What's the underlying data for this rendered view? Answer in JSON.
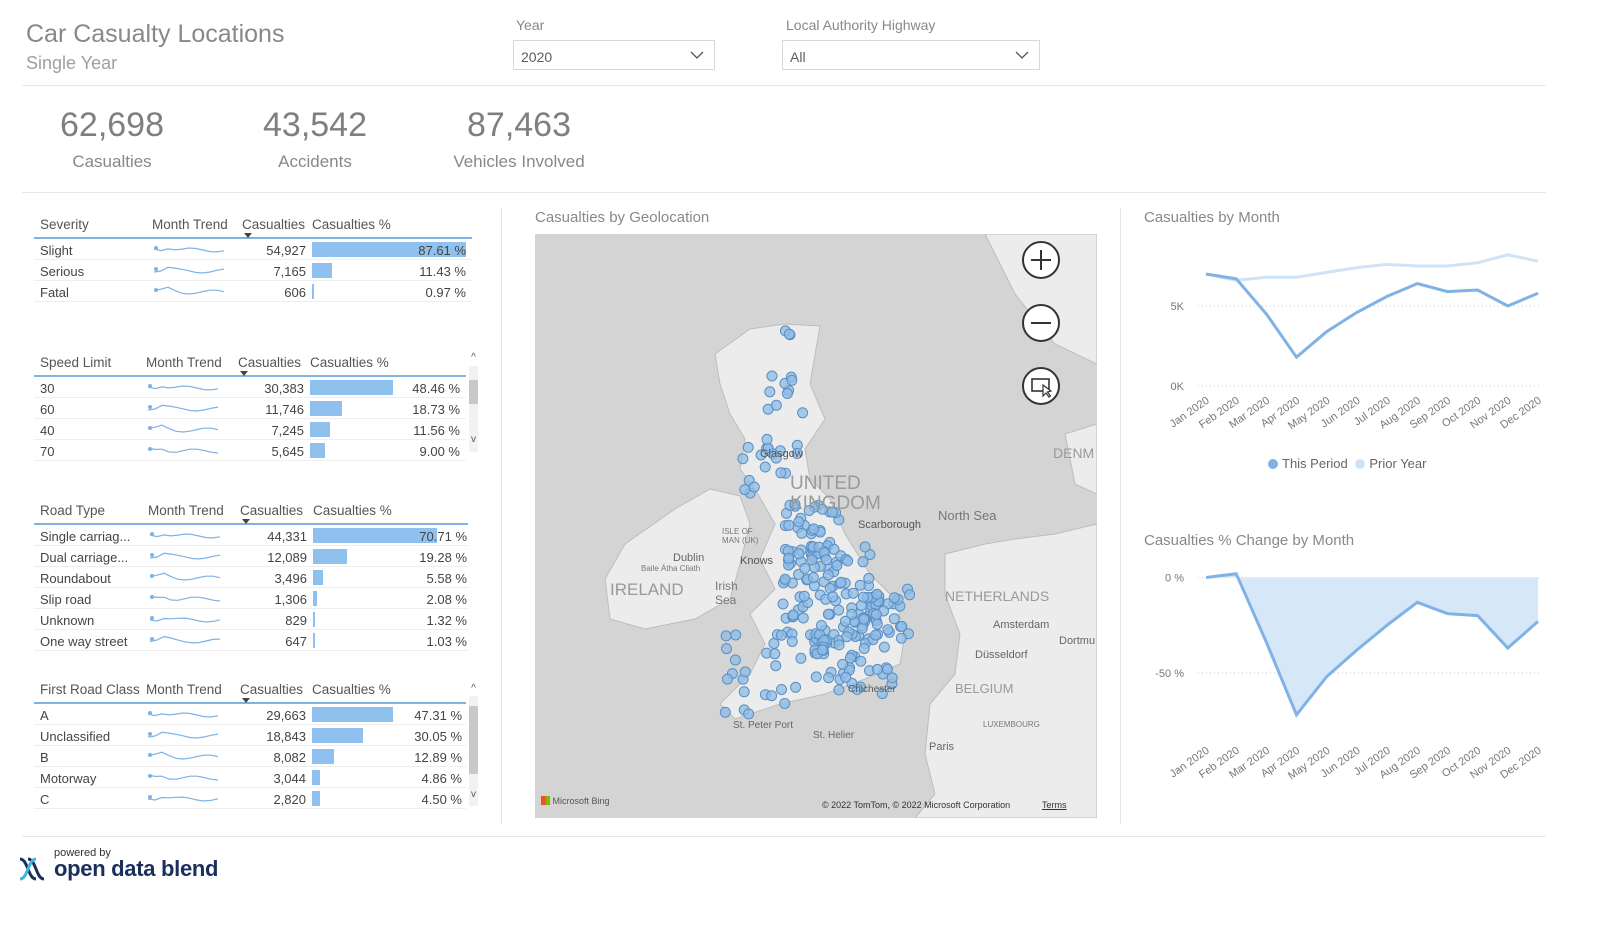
{
  "header": {
    "title": "Car Casualty Locations",
    "subtitle": "Single Year",
    "year_label": "Year",
    "year_value": "2020",
    "highway_label": "Local Authority Highway",
    "highway_value": "All"
  },
  "kpis": [
    {
      "value": "62,698",
      "label": "Casualties"
    },
    {
      "value": "43,542",
      "label": "Accidents"
    },
    {
      "value": "87,463",
      "label": "Vehicles Involved"
    }
  ],
  "tables": {
    "severity": {
      "headers": [
        "Severity",
        "Month Trend",
        "Casualties",
        "Casualties %"
      ],
      "rows": [
        {
          "name": "Slight",
          "casualties": "54,927",
          "pct": "87.61 %",
          "share": 87.61
        },
        {
          "name": "Serious",
          "casualties": "7,165",
          "pct": "11.43 %",
          "share": 11.43
        },
        {
          "name": "Fatal",
          "casualties": "606",
          "pct": "0.97 %",
          "share": 0.97
        }
      ]
    },
    "speed": {
      "headers": [
        "Speed Limit",
        "Month Trend",
        "Casualties",
        "Casualties %"
      ],
      "rows": [
        {
          "name": "30",
          "casualties": "30,383",
          "pct": "48.46 %",
          "share": 48.46
        },
        {
          "name": "60",
          "casualties": "11,746",
          "pct": "18.73 %",
          "share": 18.73
        },
        {
          "name": "40",
          "casualties": "7,245",
          "pct": "11.56 %",
          "share": 11.56
        },
        {
          "name": "70",
          "casualties": "5,645",
          "pct": "9.00 %",
          "share": 9.0
        }
      ]
    },
    "road": {
      "headers": [
        "Road Type",
        "Month Trend",
        "Casualties",
        "Casualties %"
      ],
      "rows": [
        {
          "name": "Single carriag...",
          "casualties": "44,331",
          "pct": "70.71 %",
          "share": 70.71
        },
        {
          "name": "Dual carriage...",
          "casualties": "12,089",
          "pct": "19.28 %",
          "share": 19.28
        },
        {
          "name": "Roundabout",
          "casualties": "3,496",
          "pct": "5.58 %",
          "share": 5.58
        },
        {
          "name": "Slip road",
          "casualties": "1,306",
          "pct": "2.08 %",
          "share": 2.08
        },
        {
          "name": "Unknown",
          "casualties": "829",
          "pct": "1.32 %",
          "share": 1.32
        },
        {
          "name": "One way street",
          "casualties": "647",
          "pct": "1.03 %",
          "share": 1.03
        }
      ]
    },
    "roadclass": {
      "headers": [
        "First Road Class",
        "Month Trend",
        "Casualties",
        "Casualties %"
      ],
      "rows": [
        {
          "name": "A",
          "casualties": "29,663",
          "pct": "47.31 %",
          "share": 47.31
        },
        {
          "name": "Unclassified",
          "casualties": "18,843",
          "pct": "30.05 %",
          "share": 30.05
        },
        {
          "name": "B",
          "casualties": "8,082",
          "pct": "12.89 %",
          "share": 12.89
        },
        {
          "name": "Motorway",
          "casualties": "3,044",
          "pct": "4.86 %",
          "share": 4.86
        },
        {
          "name": "C",
          "casualties": "2,820",
          "pct": "4.50 %",
          "share": 4.5
        }
      ]
    }
  },
  "map": {
    "title": "Casualties by Geolocation",
    "labels": {
      "uk": "UNITED KINGDOM",
      "north_sea": "North Sea",
      "ireland": "IRELAND",
      "irish_sea": "Irish Sea",
      "dublin": "Dublin",
      "baile": "Baile Átha Cliath",
      "netherlands": "NETHERLANDS",
      "amsterdam": "Amsterdam",
      "belgium": "BELGIUM",
      "paris": "Paris",
      "luxembourg": "LUXEMBOURG",
      "dusseldorf": "Düsseldorf",
      "dortmund": "Dortmu",
      "denmark": "DENM",
      "scarborough": "Scarborough",
      "chichester": "Chichester",
      "st_peter": "St. Peter Port",
      "st_helier": "St. Helier",
      "isle_of_man": "ISLE OF MAN (UK)",
      "glasgow": "Glasgow",
      "knowsley": "Knows",
      "bing": "Microsoft Bing",
      "copyright": "© 2022 TomTom, © 2022 Microsoft Corporation",
      "terms": "Terms"
    },
    "icons": [
      "zoom-in-icon",
      "zoom-out-icon",
      "select-area-icon"
    ]
  },
  "month_chart": {
    "title": "Casualties by Month",
    "legend": [
      "This Period",
      "Prior Year"
    ],
    "colors": {
      "this_period": "#7fb2e5",
      "prior_year": "#cfe3f7"
    }
  },
  "pct_chart": {
    "title": "Casualties % Change by Month"
  },
  "chart_data": [
    {
      "type": "line",
      "title": "Casualties by Month",
      "categories": [
        "Jan 2020",
        "Feb 2020",
        "Mar 2020",
        "Apr 2020",
        "May 2020",
        "Jun 2020",
        "Jul 2020",
        "Aug 2020",
        "Sep 2020",
        "Oct 2020",
        "Nov 2020",
        "Dec 2020"
      ],
      "series": [
        {
          "name": "This Period",
          "values": [
            7000,
            6700,
            4500,
            1800,
            3400,
            4600,
            5600,
            6400,
            5900,
            6000,
            5000,
            5800
          ]
        },
        {
          "name": "Prior Year",
          "values": [
            7000,
            6600,
            6800,
            6800,
            7100,
            7400,
            7600,
            7500,
            7500,
            7700,
            8200,
            7800
          ]
        }
      ],
      "yticks": [
        "0K",
        "5K"
      ],
      "ylim": [
        0,
        9000
      ]
    },
    {
      "type": "area",
      "title": "Casualties % Change by Month",
      "categories": [
        "Jan 2020",
        "Feb 2020",
        "Mar 2020",
        "Apr 2020",
        "May 2020",
        "Jun 2020",
        "Jul 2020",
        "Aug 2020",
        "Sep 2020",
        "Oct 2020",
        "Nov 2020",
        "Dec 2020"
      ],
      "values": [
        0,
        2,
        -34,
        -72,
        -52,
        -38,
        -25,
        -13,
        -19,
        -20,
        -37,
        -23
      ],
      "yticks": [
        "0 %",
        "-50 %"
      ],
      "ylim": [
        -80,
        5
      ]
    }
  ],
  "footer": {
    "powered_by": "powered by",
    "brand": "open data blend"
  }
}
